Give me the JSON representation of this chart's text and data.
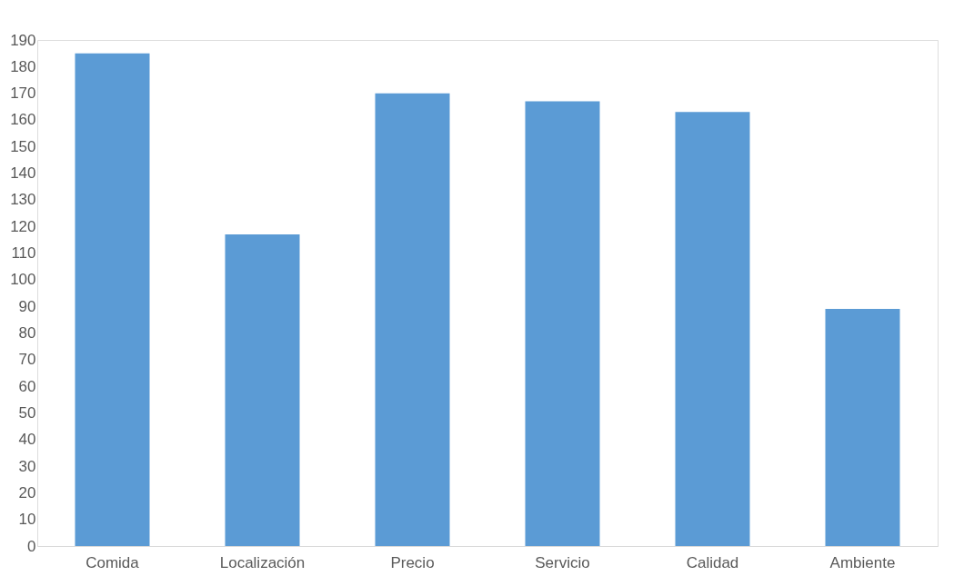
{
  "chart_data": {
    "type": "bar",
    "categories": [
      "Comida",
      "Localización",
      "Precio",
      "Servicio",
      "Calidad",
      "Ambiente"
    ],
    "values": [
      185,
      117,
      170,
      167,
      163,
      89
    ],
    "color": "#5b9bd5",
    "ylim": [
      0,
      190
    ],
    "yticks": [
      0,
      10,
      20,
      30,
      40,
      50,
      60,
      70,
      80,
      90,
      100,
      110,
      120,
      130,
      140,
      150,
      160,
      170,
      180,
      190
    ],
    "grid": false
  }
}
